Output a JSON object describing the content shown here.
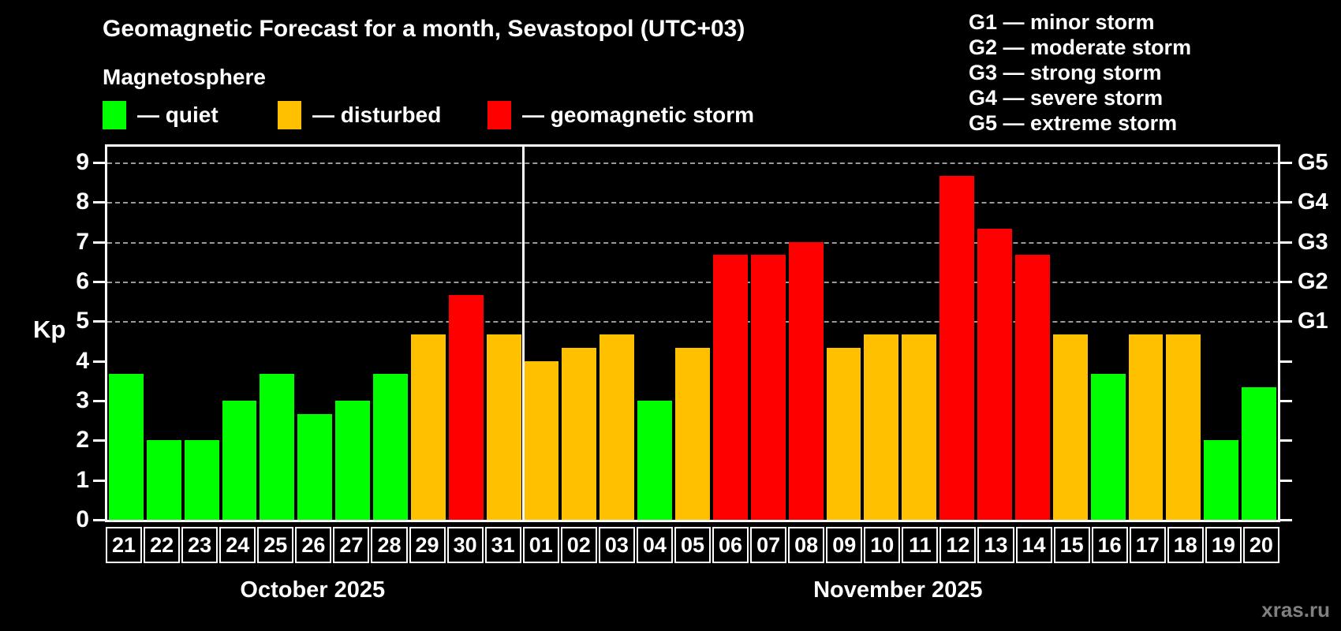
{
  "header": {
    "title": "Geomagnetic Forecast for a month, Sevastopol (UTC+03)",
    "magnetosphere_label": "Magnetosphere"
  },
  "legend": {
    "quiet": {
      "label": "— quiet",
      "color": "#00ff00"
    },
    "disturbed": {
      "label": "— disturbed",
      "color": "#ffc000"
    },
    "storm": {
      "label": "— geomagnetic storm",
      "color": "#ff0000"
    }
  },
  "g_legend": {
    "items": [
      {
        "label": "G1 — minor storm"
      },
      {
        "label": "G2 — moderate storm"
      },
      {
        "label": "G3 — strong storm"
      },
      {
        "label": "G4 — severe storm"
      },
      {
        "label": "G5 — extreme storm"
      }
    ]
  },
  "watermark": "xras.ru",
  "chart_data": {
    "type": "bar",
    "ylabel": "Kp",
    "ylim": [
      0,
      9.4
    ],
    "y_ticks": [
      0,
      1,
      2,
      3,
      4,
      5,
      6,
      7,
      8,
      9
    ],
    "grid": "dashed horizontal lines at Kp 5-9",
    "right_axis_labels": [
      {
        "label": "G1",
        "kp": 5
      },
      {
        "label": "G2",
        "kp": 6
      },
      {
        "label": "G3",
        "kp": 7
      },
      {
        "label": "G4",
        "kp": 8
      },
      {
        "label": "G5",
        "kp": 9
      }
    ],
    "status_colors": {
      "quiet": "#00ff00",
      "disturbed": "#ffc000",
      "storm": "#ff0000"
    },
    "months": [
      {
        "label": "October 2025",
        "days": [
          {
            "day": "21",
            "kp": 3.67,
            "status": "quiet"
          },
          {
            "day": "22",
            "kp": 2.0,
            "status": "quiet"
          },
          {
            "day": "23",
            "kp": 2.0,
            "status": "quiet"
          },
          {
            "day": "24",
            "kp": 3.0,
            "status": "quiet"
          },
          {
            "day": "25",
            "kp": 3.67,
            "status": "quiet"
          },
          {
            "day": "26",
            "kp": 2.67,
            "status": "quiet"
          },
          {
            "day": "27",
            "kp": 3.0,
            "status": "quiet"
          },
          {
            "day": "28",
            "kp": 3.67,
            "status": "quiet"
          },
          {
            "day": "29",
            "kp": 4.67,
            "status": "disturbed"
          },
          {
            "day": "30",
            "kp": 5.67,
            "status": "storm"
          },
          {
            "day": "31",
            "kp": 4.67,
            "status": "disturbed"
          }
        ]
      },
      {
        "label": "November 2025",
        "days": [
          {
            "day": "01",
            "kp": 4.0,
            "status": "disturbed"
          },
          {
            "day": "02",
            "kp": 4.33,
            "status": "disturbed"
          },
          {
            "day": "03",
            "kp": 4.67,
            "status": "disturbed"
          },
          {
            "day": "04",
            "kp": 3.0,
            "status": "quiet"
          },
          {
            "day": "05",
            "kp": 4.33,
            "status": "disturbed"
          },
          {
            "day": "06",
            "kp": 6.67,
            "status": "storm"
          },
          {
            "day": "07",
            "kp": 6.67,
            "status": "storm"
          },
          {
            "day": "08",
            "kp": 7.0,
            "status": "storm"
          },
          {
            "day": "09",
            "kp": 4.33,
            "status": "disturbed"
          },
          {
            "day": "10",
            "kp": 4.67,
            "status": "disturbed"
          },
          {
            "day": "11",
            "kp": 4.67,
            "status": "disturbed"
          },
          {
            "day": "12",
            "kp": 8.67,
            "status": "storm"
          },
          {
            "day": "13",
            "kp": 7.33,
            "status": "storm"
          },
          {
            "day": "14",
            "kp": 6.67,
            "status": "storm"
          },
          {
            "day": "15",
            "kp": 4.67,
            "status": "disturbed"
          },
          {
            "day": "16",
            "kp": 3.67,
            "status": "quiet"
          },
          {
            "day": "17",
            "kp": 4.67,
            "status": "disturbed"
          },
          {
            "day": "18",
            "kp": 4.67,
            "status": "disturbed"
          },
          {
            "day": "19",
            "kp": 2.0,
            "status": "quiet"
          },
          {
            "day": "20",
            "kp": 3.33,
            "status": "quiet"
          }
        ]
      }
    ]
  }
}
